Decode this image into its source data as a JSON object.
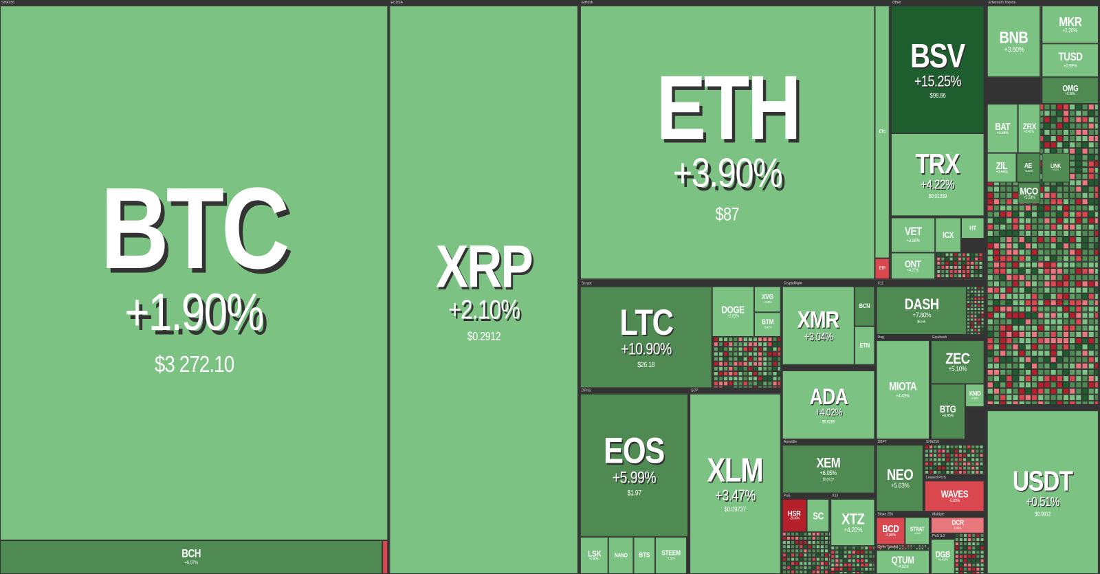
{
  "groups": [
    {
      "label": "SHA256"
    },
    {
      "label": "ECDSA"
    },
    {
      "label": "EtHash"
    },
    {
      "label": "Other"
    },
    {
      "label": "Ethereum Tokens"
    },
    {
      "label": "Scrypt"
    },
    {
      "label": "CryptoNight"
    },
    {
      "label": "X11"
    },
    {
      "label": "DPoS"
    },
    {
      "label": "SCP"
    },
    {
      "label": "Dag"
    },
    {
      "label": "Equihash"
    },
    {
      "label": "Apostille"
    },
    {
      "label": "DBFT"
    },
    {
      "label": "SHA256"
    },
    {
      "label": "Leased POS"
    },
    {
      "label": "PoS"
    },
    {
      "label": "X13"
    },
    {
      "label": "Blake 256"
    },
    {
      "label": "Multiple"
    },
    {
      "label": "PoS 3.0"
    },
    {
      "label": "Omni Tokens"
    }
  ],
  "tiles": [
    {
      "symbol": "BTC",
      "change": "+1.90%",
      "price": "$3 272.10"
    },
    {
      "symbol": "BCH",
      "change": "+6.07%"
    },
    {
      "symbol": "XRP",
      "change": "+2.10%",
      "price": "$0.2912"
    },
    {
      "symbol": "ETH",
      "change": "+3.90%",
      "price": "$87"
    },
    {
      "symbol": "ETC"
    },
    {
      "symbol": "ETP"
    },
    {
      "symbol": "BSV",
      "change": "+15.25%",
      "price": "$98.86"
    },
    {
      "symbol": "TRX",
      "change": "+4.22%",
      "price": "$0.01339"
    },
    {
      "symbol": "VET",
      "change": "+3.56%"
    },
    {
      "symbol": "ICX"
    },
    {
      "symbol": "HT"
    },
    {
      "symbol": "ONT",
      "change": "+4.27%"
    },
    {
      "symbol": "LTC",
      "change": "+10.90%",
      "price": "$26.18"
    },
    {
      "symbol": "DOGE",
      "change": "+1.91%"
    },
    {
      "symbol": "XVG",
      "change": "+3.66%"
    },
    {
      "symbol": "BTM",
      "change": "+3.47%"
    },
    {
      "symbol": "XMR",
      "change": "+3.04%"
    },
    {
      "symbol": "BCN"
    },
    {
      "symbol": "ETN"
    },
    {
      "symbol": "DASH",
      "change": "+7.80%",
      "price": "$63.66"
    },
    {
      "symbol": "MIOTA",
      "change": "+4.43%"
    },
    {
      "symbol": "ZEC",
      "change": "+5.10%"
    },
    {
      "symbol": "BTG",
      "change": "+6.95%"
    },
    {
      "symbol": "KMD",
      "change": "+6.06%"
    },
    {
      "symbol": "ADA",
      "change": "+4.02%",
      "price": "$0.0288"
    },
    {
      "symbol": "EOS",
      "change": "+5.99%",
      "price": "$1.97"
    },
    {
      "symbol": "XLM",
      "change": "+3.47%",
      "price": "$0.09737"
    },
    {
      "symbol": "LSK",
      "change": "+2.80%"
    },
    {
      "symbol": "NANO"
    },
    {
      "symbol": "BTS"
    },
    {
      "symbol": "STEEM",
      "change": "+1.52%"
    },
    {
      "symbol": "XEM",
      "change": "+6.05%",
      "price": "$0.06137"
    },
    {
      "symbol": "NEO",
      "change": "+5.63%"
    },
    {
      "symbol": "WAVES",
      "change": "-5.03%"
    },
    {
      "symbol": "HSR",
      "change": "-29.46%"
    },
    {
      "symbol": "SC"
    },
    {
      "symbol": "XTZ",
      "change": "+4.20%"
    },
    {
      "symbol": "BCD",
      "change": "-1.80%"
    },
    {
      "symbol": "STRAT",
      "change": "+0.96%"
    },
    {
      "symbol": "DCR",
      "change": "-0.66%"
    },
    {
      "symbol": "QTUM",
      "change": "+4.92%"
    },
    {
      "symbol": "DGB",
      "change": "+5.43%"
    },
    {
      "symbol": "BNB",
      "change": "+3.50%"
    },
    {
      "symbol": "MKR",
      "change": "+1.20%"
    },
    {
      "symbol": "TUSD",
      "change": "+0.59%"
    },
    {
      "symbol": "OMG",
      "change": "+6.98%"
    },
    {
      "symbol": "BAT",
      "change": "+3.86%"
    },
    {
      "symbol": "ZRX",
      "change": "+3.41%"
    },
    {
      "symbol": "ZIL",
      "change": "+3.55%"
    },
    {
      "symbol": "AE",
      "change": "+3.52%"
    },
    {
      "symbol": "MCO",
      "change": "+5.53%"
    },
    {
      "symbol": "LINK",
      "change": "+6.11%"
    },
    {
      "symbol": "USDT",
      "change": "+0.51%",
      "price": "$0.9912"
    }
  ]
}
